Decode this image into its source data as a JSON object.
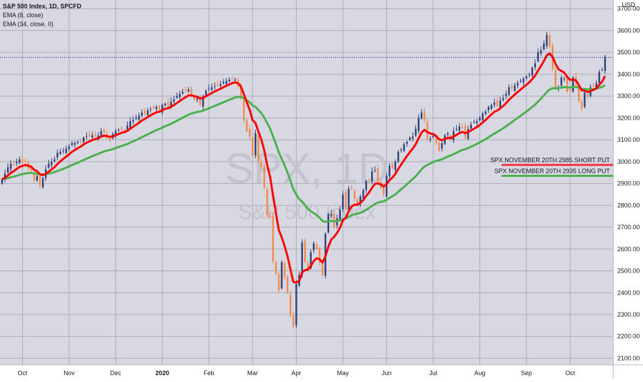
{
  "chart_data": {
    "type": "candlestick",
    "header": {
      "title": "S&P 500 Index, 1D, SPCFD",
      "indicator_1": "EMA (8, close)",
      "indicator_2": "EMA (34, close, 0)"
    },
    "watermark": {
      "symbol": "SPX, 1D",
      "name": "S&P 500 Index"
    },
    "axis": {
      "y_unit": "USD",
      "y_ticks": [
        "2100.00",
        "2200.00",
        "2300.00",
        "2400.00",
        "2500.00",
        "2600.00",
        "2700.00",
        "2800.00",
        "2900.00",
        "3000.00",
        "3100.00",
        "3200.00",
        "3300.00",
        "3400.00",
        "3500.00",
        "3600.00",
        "3700.00"
      ],
      "ylim": [
        2070,
        3740
      ],
      "x_ticks": [
        "Oct",
        "Nov",
        "Dec",
        "2020",
        "Feb",
        "Mar",
        "Apr",
        "May",
        "Jun",
        "Jul",
        "Aug",
        "Sep",
        "Oct"
      ],
      "x_tick_index": [
        7,
        23,
        39,
        55,
        71,
        86,
        101,
        117,
        132,
        148,
        164,
        180,
        195
      ],
      "bold_tick": "2020",
      "grid": true
    },
    "price_label": {
      "value": 3477.13,
      "text": "3477.13",
      "color": "#131722"
    },
    "colors": {
      "up": "#2c3e75",
      "down": "#f08a4b",
      "ema_fast": "#ff0000",
      "ema_slow": "#4caf50",
      "grid": "#a9acb6",
      "background": "#d8d8e2"
    },
    "levels": [
      {
        "name": "SPX NOVEMBER 20TH 2985 SHORT PUT",
        "value": 2985.0,
        "text": "2985.00",
        "color": "#f23645"
      },
      {
        "name": "SPX NOVEMBER 20TH 2935 LONG PUT",
        "value": 2935.0,
        "text": "2935.00",
        "color": "#4caf50"
      }
    ],
    "series_close": [
      2920,
      2945,
      2975,
      2990,
      2985,
      3000,
      3010,
      2995,
      3000,
      2970,
      2960,
      2915,
      2935,
      2890,
      2925,
      2965,
      2990,
      3000,
      3010,
      3040,
      3045,
      3050,
      3060,
      3070,
      3085,
      3085,
      3090,
      3095,
      3110,
      3115,
      3115,
      3120,
      3118,
      3120,
      3140,
      3135,
      3110,
      3100,
      3125,
      3140,
      3145,
      3150,
      3145,
      3165,
      3185,
      3190,
      3200,
      3210,
      3225,
      3220,
      3235,
      3240,
      3245,
      3250,
      3235,
      3260,
      3265,
      3255,
      3275,
      3285,
      3300,
      3310,
      3320,
      3325,
      3330,
      3305,
      3285,
      3290,
      3260,
      3300,
      3325,
      3335,
      3340,
      3345,
      3350,
      3355,
      3365,
      3370,
      3375,
      3380,
      3375,
      3345,
      3290,
      3190,
      3140,
      3115,
      3025,
      3130,
      3000,
      2975,
      2880,
      2755,
      2745,
      2545,
      2485,
      2410,
      2540,
      2470,
      2400,
      2300,
      2245,
      2440,
      2480,
      2630,
      2540,
      2510,
      2585,
      2625,
      2600,
      2540,
      2480,
      2670,
      2760,
      2760,
      2700,
      2740,
      2780,
      2850,
      2785,
      2875,
      2875,
      2830,
      2800,
      2840,
      2870,
      2910,
      2915,
      2955,
      2960,
      2910,
      2880,
      2850,
      2935,
      2980,
      2970,
      3000,
      3045,
      3055,
      3080,
      3090,
      3110,
      3115,
      3150,
      3200,
      3225,
      3190,
      3100,
      3105,
      3120,
      3085,
      3050,
      3085,
      3120,
      3130,
      3100,
      3140,
      3150,
      3160,
      3155,
      3110,
      3150,
      3170,
      3180,
      3185,
      3200,
      3220,
      3230,
      3250,
      3260,
      3270,
      3255,
      3280,
      3290,
      3310,
      3340,
      3335,
      3350,
      3360,
      3370,
      3380,
      3390,
      3400,
      3430,
      3450,
      3500,
      3510,
      3540,
      3580,
      3525,
      3425,
      3335,
      3340,
      3385,
      3380,
      3320,
      3325,
      3385,
      3355,
      3275,
      3245,
      3315,
      3300,
      3340,
      3345,
      3360,
      3410,
      3420,
      3480
    ]
  }
}
